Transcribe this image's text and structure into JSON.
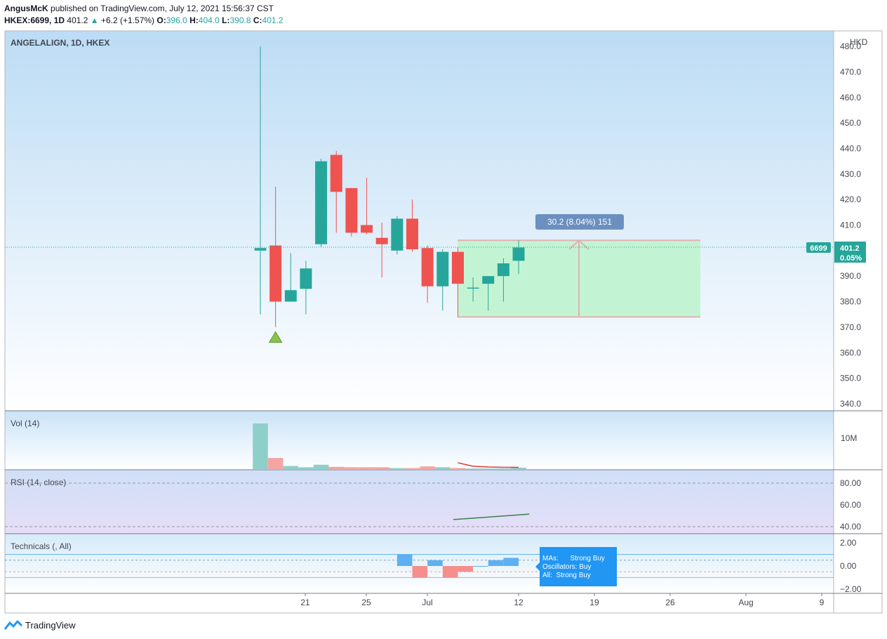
{
  "header": {
    "author": "AngusMcK",
    "published": "published on TradingView.com, July 12, 2021 15:56:37 CST",
    "symbol_line": "HKEX:6699, 1D",
    "last": "401.2",
    "change": "+6.2 (+1.57%)",
    "open_label": "O:",
    "open": "396.0",
    "high_label": "H:",
    "high": "404.0",
    "low_label": "L:",
    "low": "390.8",
    "close_label": "C:",
    "close": "401.2"
  },
  "pane_title": "ANGELALIGN, 1D, HKEX",
  "currency": "HKD",
  "price_tag": {
    "ticker": "6699",
    "price": "401.2",
    "pct": "0.05%"
  },
  "measure_label": "30.2 (8.04%) 151",
  "vol_title": "Vol (14)",
  "vol_axis_label": "10M",
  "rsi_title": "RSI (14, close)",
  "tech_title": "Technicals (, All)",
  "tech_tooltip": {
    "line1": "MAs:      Strong Buy",
    "line2": "Oscillators: Buy",
    "line3": "All:  Strong Buy"
  },
  "footer": {
    "brand": "TradingView"
  },
  "colors": {
    "up": "#26a69a",
    "down": "#ef5350",
    "accent": "#2196f3"
  },
  "chart_data": {
    "type": "candlestick",
    "title": "ANGELALIGN, 1D, HKEX",
    "y_axis": {
      "ylim": [
        335,
        480
      ],
      "ticks": [
        "470.0",
        "460.0",
        "450.0",
        "440.0",
        "430.0",
        "420.0",
        "410.0",
        "400.0",
        "390.0",
        "380.0",
        "370.0",
        "360.0",
        "350.0",
        "340.0"
      ]
    },
    "x_ticks": [
      "21",
      "25",
      "Jul",
      "12",
      "19",
      "26",
      "Aug",
      "9"
    ],
    "candles": [
      {
        "o": 400.0,
        "h": 480.0,
        "l": 375.0,
        "c": 401.0
      },
      {
        "o": 402.0,
        "h": 425.0,
        "l": 370.0,
        "c": 380.0
      },
      {
        "o": 380.0,
        "h": 399.0,
        "l": 380.0,
        "c": 384.5
      },
      {
        "o": 385.0,
        "h": 396.0,
        "l": 375.0,
        "c": 393.0
      },
      {
        "o": 402.5,
        "h": 436.0,
        "l": 401.5,
        "c": 435.0
      },
      {
        "o": 437.5,
        "h": 439.0,
        "l": 407.0,
        "c": 423.0
      },
      {
        "o": 424.5,
        "h": 424.5,
        "l": 405.5,
        "c": 407.0
      },
      {
        "o": 410.0,
        "h": 428.5,
        "l": 406.5,
        "c": 407.0
      },
      {
        "o": 405.0,
        "h": 411.0,
        "l": 389.5,
        "c": 402.5
      },
      {
        "o": 400.0,
        "h": 413.5,
        "l": 398.5,
        "c": 412.5
      },
      {
        "o": 412.5,
        "h": 420.0,
        "l": 399.5,
        "c": 400.5
      },
      {
        "o": 401.0,
        "h": 402.0,
        "l": 379.5,
        "c": 386.0
      },
      {
        "o": 386.0,
        "h": 400.5,
        "l": 376.5,
        "c": 399.5
      },
      {
        "o": 399.5,
        "h": 401.5,
        "l": 374.0,
        "c": 387.0
      },
      {
        "o": 385.5,
        "h": 389.5,
        "l": 380.0,
        "c": 385.5
      },
      {
        "o": 387.0,
        "h": 390.0,
        "l": 376.5,
        "c": 390.0
      },
      {
        "o": 390.0,
        "h": 397.0,
        "l": 380.0,
        "c": 395.0
      },
      {
        "o": 396.0,
        "h": 404.0,
        "l": 390.8,
        "c": 401.2
      }
    ],
    "volume": [
      11.0,
      2.8,
      0.9,
      0.6,
      1.2,
      0.7,
      0.6,
      0.6,
      0.6,
      0.4,
      0.4,
      0.8,
      0.6,
      0.4,
      0.3,
      0.3,
      0.3,
      0.5
    ],
    "rsi_axis": [
      "80.00",
      "60.00",
      "40.00"
    ],
    "rsi_values": [
      46.5,
      47.5,
      48.5,
      49.5,
      50.5,
      51.5
    ],
    "technicals_axis": [
      "2.00",
      "0.00",
      "-2.00"
    ],
    "technicals": [
      1.0,
      -1.0,
      0.5,
      -1.0,
      -0.5,
      0.0,
      0.5,
      0.7
    ],
    "position_range": {
      "top": 404.0,
      "bottom": 374.0
    },
    "signal_marker": {
      "type": "triangle-up",
      "price": 366.0
    }
  }
}
